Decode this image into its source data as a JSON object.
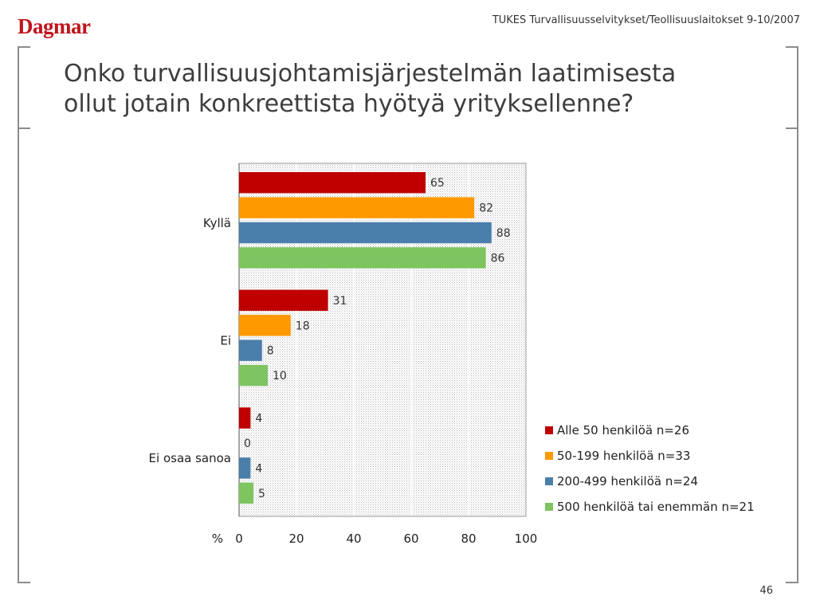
{
  "header": {
    "logo_text": "Dagmar",
    "note": "TUKES Turvallisuusselvitykset/Teollisuuslaitokset 9-10/2007"
  },
  "title": {
    "line1": "Onko turvallisuusjohtamisjärjestelmän laatimisesta",
    "line2": "ollut jotain konkreettista hyötyä yrityksellenne?"
  },
  "footer": {
    "page_number": "46"
  },
  "chart_data": {
    "type": "bar",
    "orientation": "horizontal",
    "categories": [
      "Kyllä",
      "Ei",
      "Ei osaa sanoa"
    ],
    "series": [
      {
        "name": "Alle 50 henkilöä n=26",
        "color": "#c00000",
        "values": [
          65,
          31,
          4
        ]
      },
      {
        "name": "50-199 henkilöä n=33",
        "color": "#ff9900",
        "values": [
          82,
          18,
          0
        ]
      },
      {
        "name": "200-499 henkilöä n=24",
        "color": "#4a7eab",
        "values": [
          88,
          8,
          4
        ]
      },
      {
        "name": "500 henkilöä tai enemmän n=21",
        "color": "#7ec460",
        "values": [
          86,
          10,
          5
        ]
      }
    ],
    "x_unit_label": "%",
    "xlim": [
      0,
      100
    ],
    "x_ticks": [
      0,
      20,
      40,
      60,
      80,
      100
    ],
    "data_labels": true,
    "legend_position": "right",
    "plot_background": "dotted-grey"
  }
}
